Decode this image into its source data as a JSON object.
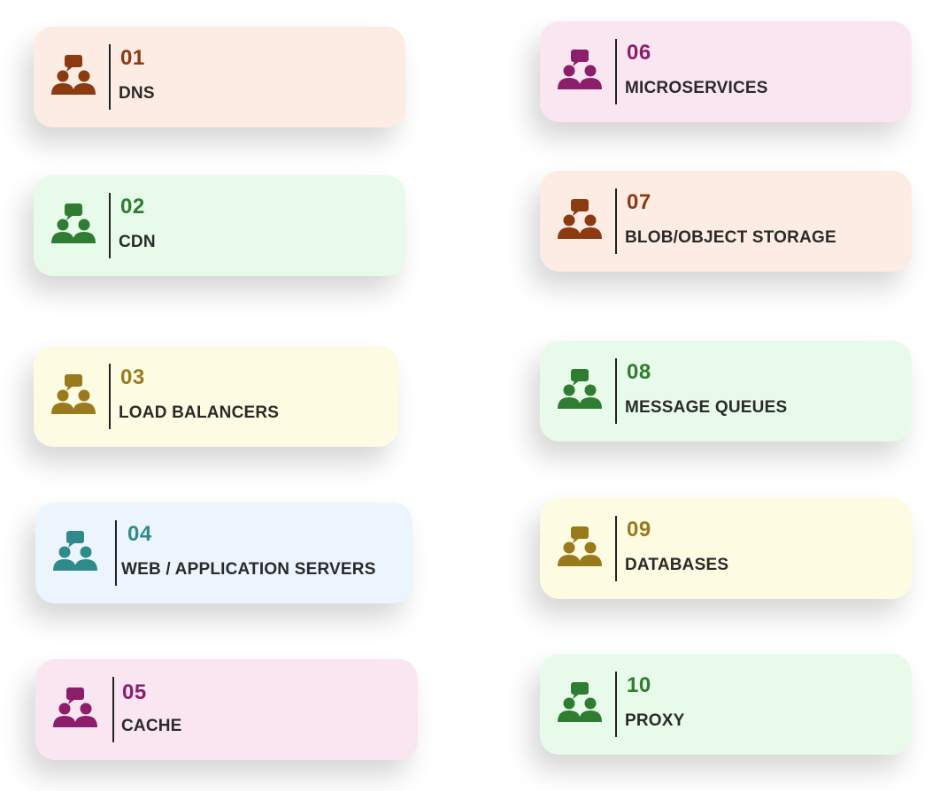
{
  "colors": {
    "brown": "#8c3a12",
    "green": "#2f7d32",
    "olive": "#9a7a1c",
    "teal": "#2f8a8a",
    "magenta": "#8c1e6b",
    "peach_bg": "#fcece3",
    "green_bg": "#e8fbea",
    "yellow_bg": "#fdfbe2",
    "blue_bg": "#ecf4fd",
    "pink_bg": "#fae6f1",
    "label_text": "#2a2a2a"
  },
  "cards": [
    {
      "number": "01",
      "label": "DNS",
      "icon": "team-chat-icon"
    },
    {
      "number": "02",
      "label": "CDN",
      "icon": "team-chat-icon"
    },
    {
      "number": "03",
      "label": "LOAD BALANCERS",
      "icon": "team-chat-icon"
    },
    {
      "number": "04",
      "label": "WEB / APPLICATION SERVERS",
      "icon": "team-chat-icon"
    },
    {
      "number": "05",
      "label": "CACHE",
      "icon": "team-chat-icon"
    },
    {
      "number": "06",
      "label": "MICROSERVICES",
      "icon": "team-chat-icon"
    },
    {
      "number": "07",
      "label": "BLOB/OBJECT STORAGE",
      "icon": "team-chat-icon"
    },
    {
      "number": "08",
      "label": "MESSAGE QUEUES",
      "icon": "team-chat-icon"
    },
    {
      "number": "09",
      "label": "DATABASES",
      "icon": "team-chat-icon"
    },
    {
      "number": "10",
      "label": "PROXY",
      "icon": "team-chat-icon"
    }
  ]
}
